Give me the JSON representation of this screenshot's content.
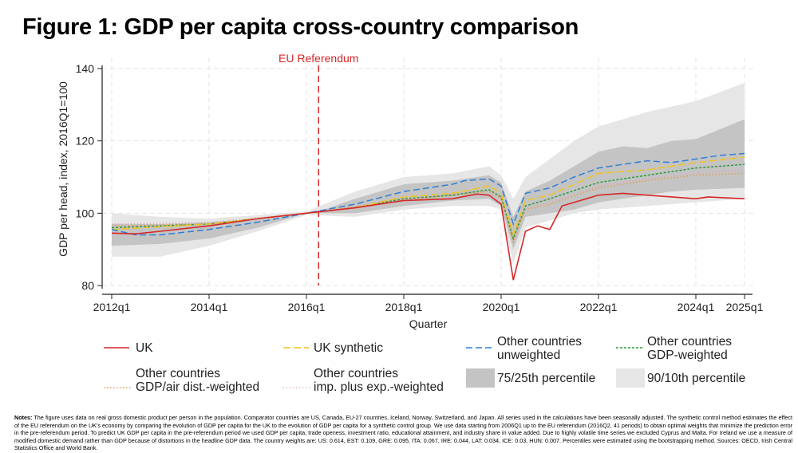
{
  "title": "Figure 1: GDP per capita cross-country comparison",
  "chart_data": {
    "type": "line",
    "xlabel": "Quarter",
    "ylabel": "GDP per head, index, 2016Q1=100",
    "ylim": [
      80,
      140
    ],
    "yticks": [
      80,
      100,
      120,
      140
    ],
    "xticks": [
      "2012q1",
      "2014q1",
      "2016q1",
      "2018q1",
      "2020q1",
      "2022q1",
      "2024q1",
      "2025q1"
    ],
    "grid": true,
    "legend_position": "bottom",
    "annotation": {
      "label": "EU Referendum",
      "x": "2016q2",
      "color": "#d62728"
    },
    "bands": [
      {
        "name": "90/10th percentile",
        "color": "#e6e6e6",
        "points": [
          [
            "2012q1",
            88,
            100
          ],
          [
            "2013q1",
            88,
            99
          ],
          [
            "2014q1",
            91,
            98.5
          ],
          [
            "2015q1",
            95,
            99.5
          ],
          [
            "2016q1",
            99.5,
            100.5
          ],
          [
            "2017q1",
            99,
            106
          ],
          [
            "2018q1",
            101,
            110
          ],
          [
            "2019q1",
            102,
            111
          ],
          [
            "2019q4",
            102,
            113
          ],
          [
            "2020q1",
            101,
            110.5
          ],
          [
            "2020q2",
            86,
            104
          ],
          [
            "2020q3",
            96,
            110
          ],
          [
            "2021q1",
            98,
            115
          ],
          [
            "2021q3",
            100,
            120
          ],
          [
            "2022q1",
            101,
            124
          ],
          [
            "2023q1",
            102,
            128
          ],
          [
            "2024q1",
            103,
            131
          ],
          [
            "2025q1",
            104,
            136
          ]
        ]
      },
      {
        "name": "75/25th percentile",
        "color": "#c4c4c4",
        "points": [
          [
            "2012q1",
            91,
            97
          ],
          [
            "2013q1",
            91.5,
            97
          ],
          [
            "2014q1",
            93,
            97.5
          ],
          [
            "2015q1",
            96,
            98.5
          ],
          [
            "2016q1",
            100,
            100
          ],
          [
            "2016q2",
            100,
            100.5
          ],
          [
            "2017q1",
            100,
            104
          ],
          [
            "2018q1",
            102,
            108
          ],
          [
            "2019q1",
            103.5,
            109
          ],
          [
            "2019q4",
            104,
            110.5
          ],
          [
            "2020q1",
            102,
            108.5
          ],
          [
            "2020q2",
            90,
            99
          ],
          [
            "2020q3",
            99,
            106
          ],
          [
            "2021q1",
            100,
            109
          ],
          [
            "2021q3",
            101,
            113
          ],
          [
            "2022q1",
            103,
            117
          ],
          [
            "2022q3",
            104,
            118.5
          ],
          [
            "2023q1",
            105,
            118
          ],
          [
            "2023q3",
            106,
            120
          ],
          [
            "2024q1",
            106.5,
            120.5
          ],
          [
            "2025q1",
            107,
            126
          ]
        ]
      }
    ],
    "series": [
      {
        "name": "Other countries imp. plus exp.-weighted",
        "color": "#e8a0a8",
        "dash": "1 3",
        "points": [
          [
            "2012q1",
            97
          ],
          [
            "2014q1",
            97.5
          ],
          [
            "2016q1",
            100
          ],
          [
            "2018q1",
            104
          ],
          [
            "2019q4",
            106.5
          ],
          [
            "2020q1",
            104.5
          ],
          [
            "2020q2",
            92.5
          ],
          [
            "2020q3",
            101.5
          ],
          [
            "2021q1",
            103
          ],
          [
            "2022q1",
            107.5
          ],
          [
            "2023q1",
            109.5
          ],
          [
            "2024q1",
            111
          ],
          [
            "2025q1",
            112
          ]
        ]
      },
      {
        "name": "Other countries GDP/air dist.-weighted",
        "color": "#e0a050",
        "dash": "1.5 2.5",
        "points": [
          [
            "2012q1",
            96.5
          ],
          [
            "2014q1",
            97
          ],
          [
            "2016q1",
            100
          ],
          [
            "2018q1",
            103.5
          ],
          [
            "2019q4",
            106
          ],
          [
            "2020q1",
            104
          ],
          [
            "2020q2",
            92
          ],
          [
            "2020q3",
            101
          ],
          [
            "2021q1",
            102.5
          ],
          [
            "2022q1",
            107
          ],
          [
            "2023q1",
            109
          ],
          [
            "2024q1",
            110.5
          ],
          [
            "2025q1",
            111
          ]
        ]
      },
      {
        "name": "Other countries GDP-weighted",
        "color": "#2e9a3c",
        "dash": "3 2",
        "points": [
          [
            "2012q1",
            96
          ],
          [
            "2014q1",
            97
          ],
          [
            "2016q1",
            100
          ],
          [
            "2017q1",
            101.5
          ],
          [
            "2018q1",
            104
          ],
          [
            "2019q1",
            105
          ],
          [
            "2019q4",
            106.5
          ],
          [
            "2020q1",
            104.5
          ],
          [
            "2020q2",
            93
          ],
          [
            "2020q3",
            102
          ],
          [
            "2021q1",
            104
          ],
          [
            "2022q1",
            108.5
          ],
          [
            "2023q1",
            110.5
          ],
          [
            "2024q1",
            112.5
          ],
          [
            "2025q1",
            113.5
          ]
        ]
      },
      {
        "name": "UK synthetic",
        "color": "#f0c419",
        "dash": "9 4",
        "points": [
          [
            "2012q1",
            95.5
          ],
          [
            "2014q1",
            97
          ],
          [
            "2016q1",
            100
          ],
          [
            "2017q1",
            101.5
          ],
          [
            "2018q1",
            104.5
          ],
          [
            "2019q1",
            105.5
          ],
          [
            "2019q4",
            107.5
          ],
          [
            "2020q1",
            105.5
          ],
          [
            "2020q2",
            94
          ],
          [
            "2020q3",
            103.5
          ],
          [
            "2021q1",
            105
          ],
          [
            "2022q1",
            111
          ],
          [
            "2023q1",
            112
          ],
          [
            "2024q1",
            114
          ],
          [
            "2025q1",
            115.5
          ]
        ]
      },
      {
        "name": "Other countries unweighted",
        "color": "#2f7fd6",
        "dash": "8 4",
        "points": [
          [
            "2012q1",
            95.5
          ],
          [
            "2012q3",
            94
          ],
          [
            "2013q1",
            94
          ],
          [
            "2014q1",
            95.5
          ],
          [
            "2015q1",
            97.5
          ],
          [
            "2016q1",
            100
          ],
          [
            "2017q1",
            102.5
          ],
          [
            "2018q1",
            106
          ],
          [
            "2019q1",
            108
          ],
          [
            "2019q2",
            109
          ],
          [
            "2019q4",
            109.5
          ],
          [
            "2020q1",
            107.5
          ],
          [
            "2020q2",
            97
          ],
          [
            "2020q3",
            105.5
          ],
          [
            "2021q1",
            107
          ],
          [
            "2021q3",
            110
          ],
          [
            "2022q1",
            112.5
          ],
          [
            "2022q3",
            113.5
          ],
          [
            "2023q1",
            114.5
          ],
          [
            "2023q3",
            114
          ],
          [
            "2024q1",
            115
          ],
          [
            "2024q3",
            116
          ],
          [
            "2025q1",
            116.5
          ]
        ]
      },
      {
        "name": "UK",
        "color": "#d62728",
        "dash": "",
        "points": [
          [
            "2012q1",
            94.5
          ],
          [
            "2012q3",
            94.3
          ],
          [
            "2013q1",
            95
          ],
          [
            "2014q1",
            96.5
          ],
          [
            "2015q1",
            98.5
          ],
          [
            "2016q1",
            100
          ],
          [
            "2017q1",
            101.5
          ],
          [
            "2018q1",
            103.5
          ],
          [
            "2019q1",
            104
          ],
          [
            "2019q3",
            105.3
          ],
          [
            "2019q4",
            105
          ],
          [
            "2020q1",
            102.5
          ],
          [
            "2020q2",
            81.5
          ],
          [
            "2020q3",
            95
          ],
          [
            "2020q4",
            96.5
          ],
          [
            "2021q1",
            95.5
          ],
          [
            "2021q2",
            102
          ],
          [
            "2021q4",
            104
          ],
          [
            "2022q1",
            105
          ],
          [
            "2022q3",
            105.5
          ],
          [
            "2023q1",
            105
          ],
          [
            "2024q1",
            104
          ],
          [
            "2024q2",
            104.5
          ],
          [
            "2025q1",
            104
          ]
        ]
      }
    ]
  },
  "legend": {
    "uk": "UK",
    "uk_synthetic": "UK synthetic",
    "unweighted": [
      "Other countries",
      "unweighted"
    ],
    "gdp_weighted": [
      "Other countries",
      "GDP-weighted"
    ],
    "gdp_air": [
      "Other countries",
      "GDP/air dist.-weighted"
    ],
    "imp_exp": [
      "Other countries",
      "imp. plus exp.-weighted"
    ],
    "p75": "75/25th percentile",
    "p90": "90/10th percentile"
  },
  "notes": {
    "label": "Notes:",
    "text": "The figure uses data on real gross domestic product per person in the population. Comparator countries are US, Canada, EU-27 countries, Iceland, Norway, Switzerland, and Japan. All series used in the calculations have been seasonally adjusted. The synthetic control method estimates the effect of the EU referendum on the UK's economy by comparing the evolution of GDP per capita for the UK to the evolution of GDP per capita for a synthetic control group. We use data starting from 2006Q1 up to the EU referendum (2016Q2, 41 periods) to obtain optimal weights that minimize the prediction error in the pre-referendum period. To predict UK GDP per capita in the pre-referendum period we used GDP per capita, trade openess, investment ratio, educational attainment, and industry share in value added. Due to highly volatile time series we excluded Cyprus and Malta. For Ireland we use a measure of modified domestic demand rather than GDP because of distortions in the headline GDP data. The country weights are: US: 0.614, EST: 0.109, GRE: 0.095, ITA: 0.067, IRE: 0.044, LAT: 0.034, ICE: 0.03, HUN: 0.007. Percentiles were estimated using the bootstrapping method. Sources: OECD, Irish Central Statistics Office and World Bank."
  }
}
